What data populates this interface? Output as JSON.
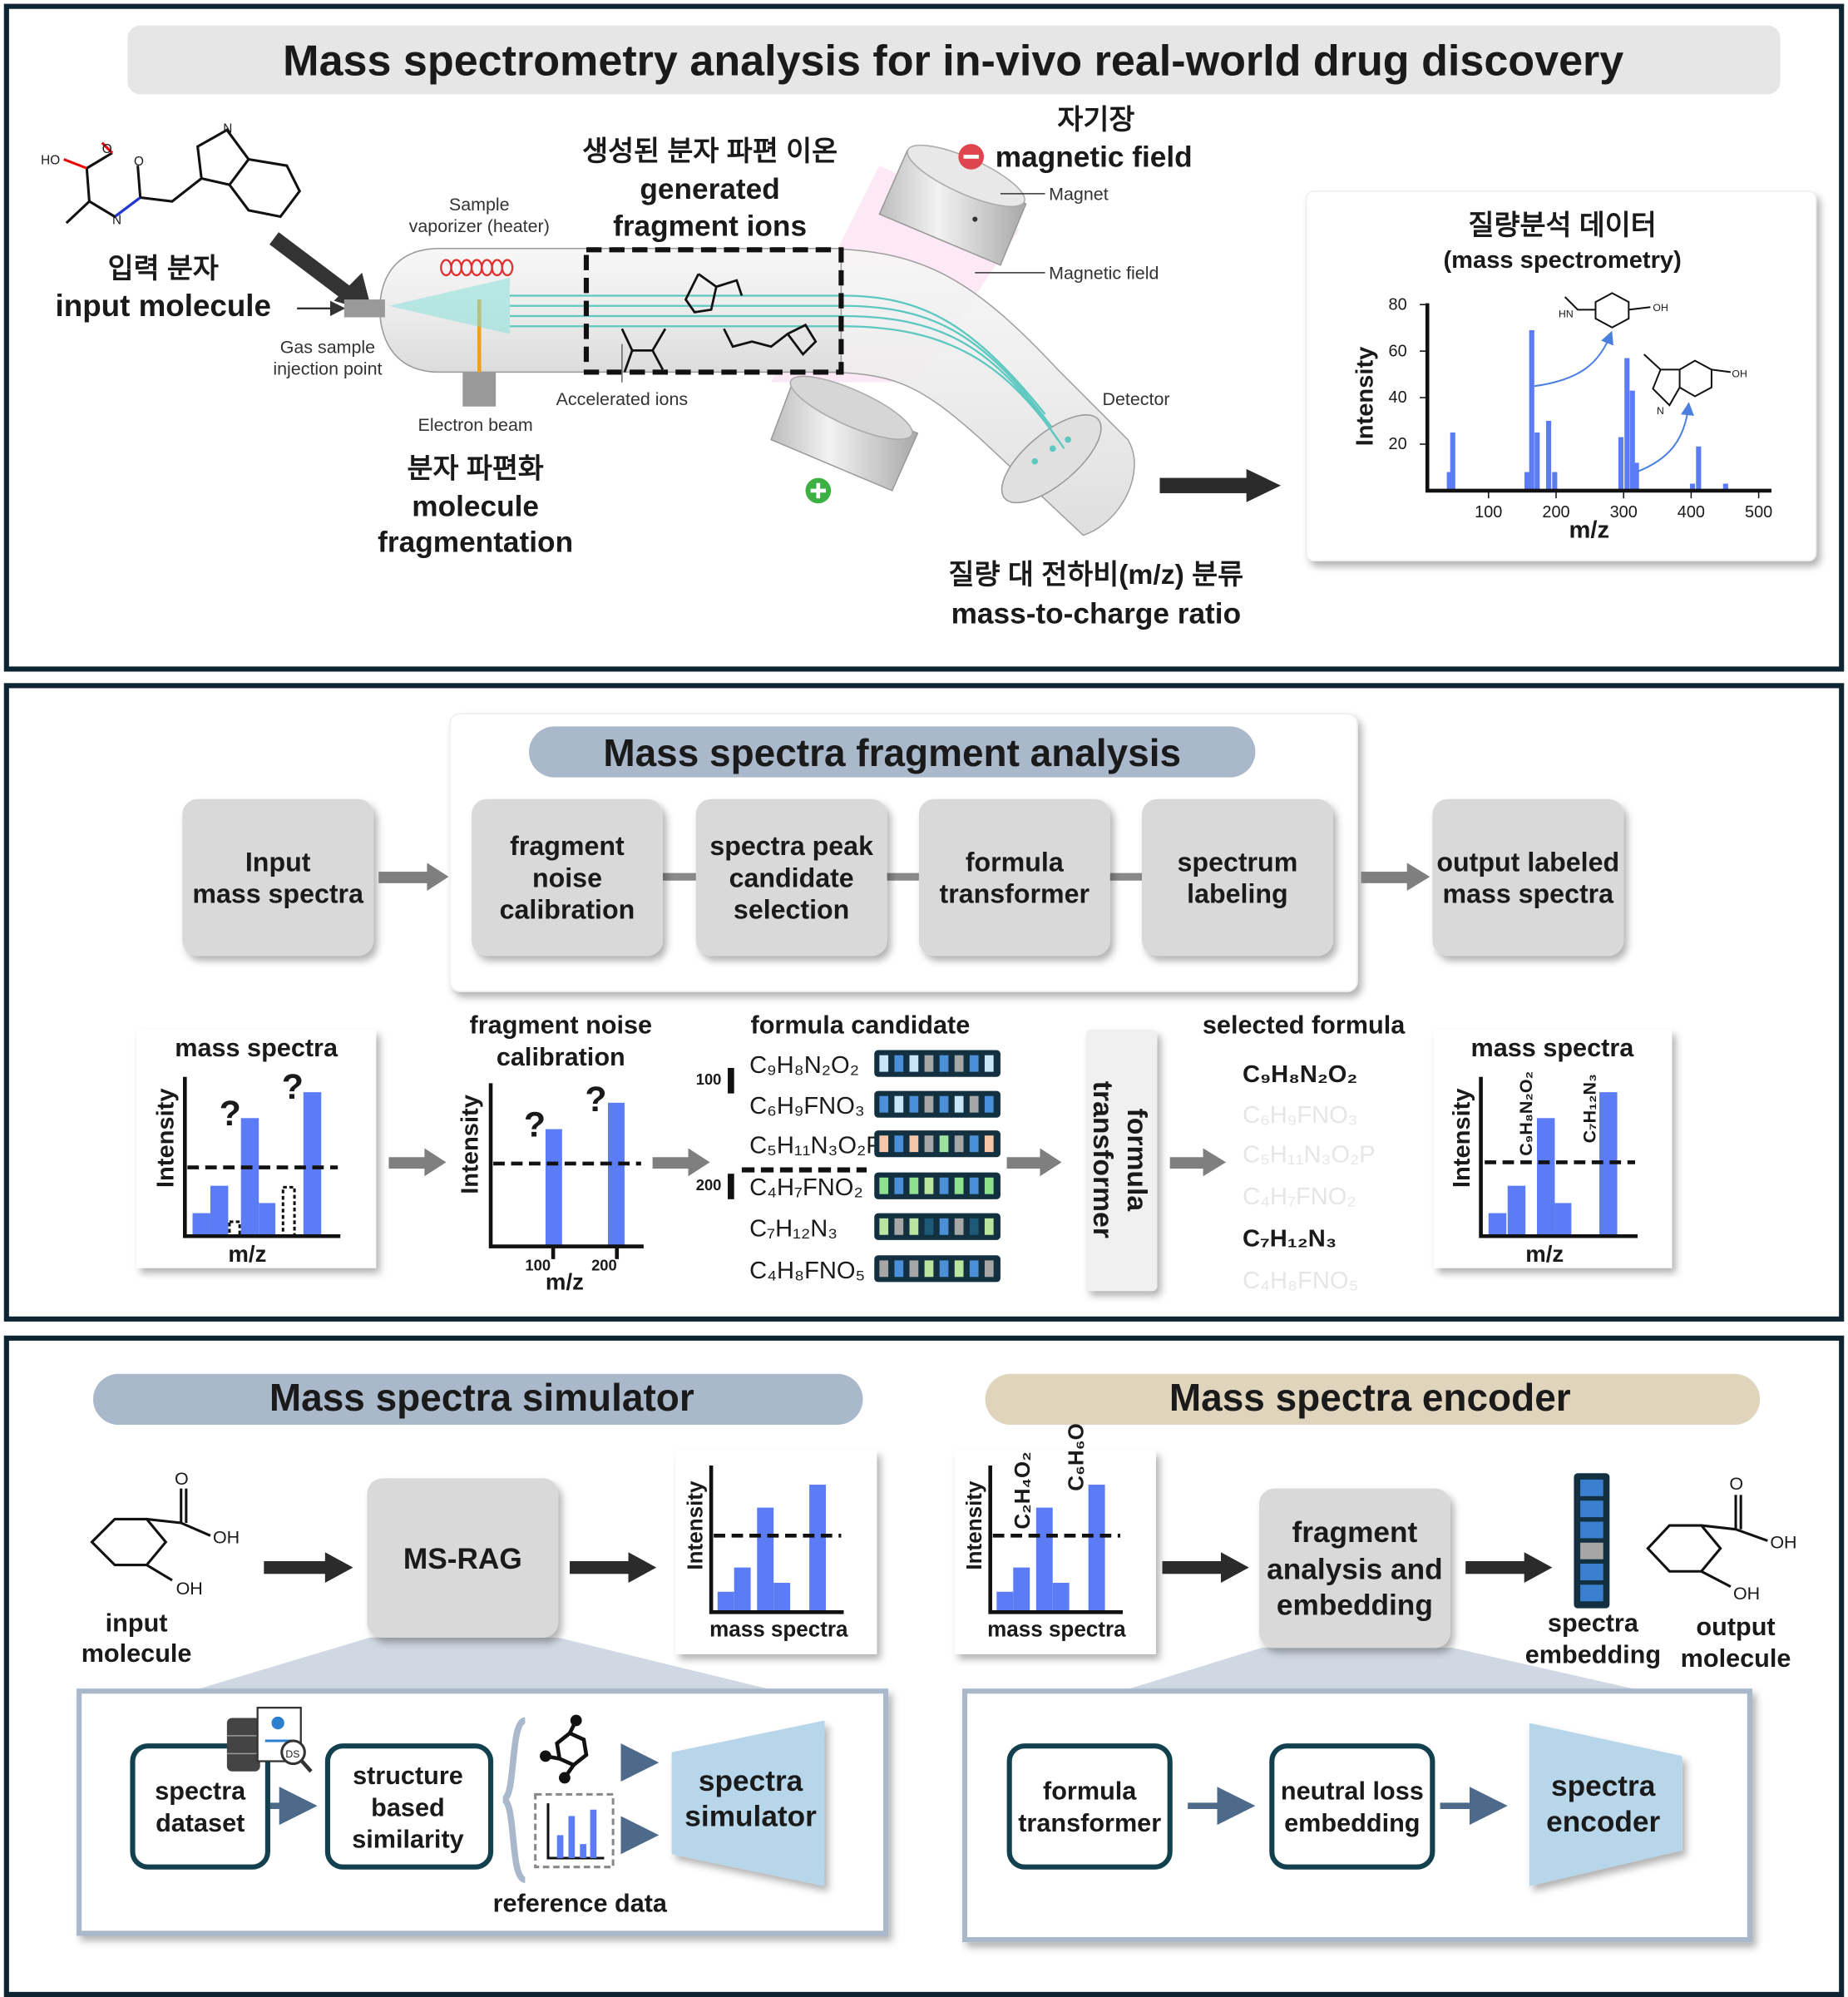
{
  "colors": {
    "panel_border": "#0d2533",
    "bar_blue": "#5b7cf5",
    "pill_blue": "#aab8cc",
    "pill_tan": "#e0d4bd",
    "box_gray": "#d9d9d9",
    "trapezoid_blue": "#b7d6ea",
    "plus_green": "#3cb043",
    "minus_red": "#e0454f"
  },
  "panel1": {
    "title": "Mass spectrometry analysis for in-vivo real-world drug discovery",
    "input_ko": "입력 분자",
    "input_en": "input molecule",
    "sample_vaporizer": [
      "Sample",
      "vaporizer (heater)"
    ],
    "gas_sample": [
      "Gas sample",
      "injection point"
    ],
    "electron_beam": "Electron beam",
    "accelerated_ions": "Accelerated ions",
    "fragment_ko": "생성된 분자 파편 이온",
    "fragment_en": [
      "generated",
      "fragment ions"
    ],
    "fragmentation_ko": "분자 파편화",
    "fragmentation_en": [
      "molecule",
      "fragmentation"
    ],
    "field_ko": "자기장",
    "field_en": "magnetic field",
    "magnet": "Magnet",
    "magnetic_field": "Magnetic field",
    "detector": "Detector",
    "mz_ko": "질량 대 전하비(m/z) 분류",
    "mz_en": "mass-to-charge ratio",
    "molecule_atoms": {
      "ho": "HO",
      "o": "O",
      "n": "N",
      "h": "H",
      "hn": "HN",
      "oh": "OH"
    },
    "icons": {
      "plus": "plus-circle-icon",
      "minus": "minus-circle-icon"
    }
  },
  "chart_data": {
    "type": "bar",
    "title": "질량분석 데이터",
    "subtitle": "(mass spectrometry)",
    "xlabel": "m/z",
    "ylabel": "Intensity",
    "xticks": [
      "100",
      "200",
      "300",
      "400",
      "500"
    ],
    "yticks": [
      "20",
      "40",
      "60",
      "80"
    ],
    "xlim": [
      0,
      510
    ],
    "ylim": [
      0,
      80
    ],
    "grid": false,
    "x": [
      42,
      47,
      157,
      164,
      172,
      189,
      198,
      296,
      305,
      313,
      319,
      402,
      411,
      451
    ],
    "values": [
      8,
      25,
      8,
      69,
      25,
      30,
      8,
      23,
      57,
      43,
      12,
      3,
      19,
      3
    ]
  },
  "panel2": {
    "title": "Mass spectra fragment analysis",
    "steps": [
      {
        "lines": [
          "Input",
          "mass spectra"
        ]
      },
      {
        "lines": [
          "fragment",
          "noise",
          "calibration"
        ]
      },
      {
        "lines": [
          "spectra peak",
          "candidate",
          "selection"
        ]
      },
      {
        "lines": [
          "formula",
          "transformer"
        ]
      },
      {
        "lines": [
          "spectrum",
          "labeling"
        ]
      },
      {
        "lines": [
          "output labeled",
          "mass spectra"
        ]
      }
    ],
    "input_chart": {
      "title": "mass spectra",
      "ylabel": "Intensity",
      "xlabel": "m/z",
      "question": "?",
      "values": [
        16,
        35,
        10,
        82,
        23,
        34,
        100
      ],
      "outlined": [
        false,
        false,
        true,
        false,
        false,
        true,
        false
      ]
    },
    "noise_chart": {
      "title": [
        "fragment noise",
        "calibration"
      ],
      "ylabel": "Intensity",
      "xlabel": "m/z",
      "question": "?",
      "xticks": [
        "100",
        "200"
      ],
      "values": [
        80,
        98
      ]
    },
    "formula_candidate": {
      "title": "formula candidate",
      "marks": [
        "100",
        "200"
      ],
      "formulas": [
        "C₉H₈N₂O₂",
        "C₆H₉FNO₃",
        "C₅H₁₁N₃O₂P",
        "C₄H₇FNO₂",
        "C₇H₁₂N₃",
        "C₄H₈FNO₅"
      ],
      "embeddings": [
        [
          "#c6e6f5",
          "#4a8fd8",
          "#c6e6f5",
          "#a6a6a6",
          "#4a8fd8",
          "#a6a6a6",
          "#4a8fd8",
          "#c6e6f5"
        ],
        [
          "#4a8fd8",
          "#c6e6f5",
          "#4a8fd8",
          "#a6a6a6",
          "#4a8fd8",
          "#c6e6f5",
          "#a6a6a6",
          "#4a8fd8"
        ],
        [
          "#f5c6a8",
          "#4a8fd8",
          "#f5c6a8",
          "#a6a6a6",
          "#9ee29e",
          "#a6a6a6",
          "#4a8fd8",
          "#f5c6a8"
        ],
        [
          "#8fe08f",
          "#4a8fd8",
          "#8fe08f",
          "#b8e6a0",
          "#4a8fd8",
          "#8fe08f",
          "#4a8fd8",
          "#8fe08f"
        ],
        [
          "#b8e6a0",
          "#a6a6a6",
          "#b8e6a0",
          "#1c5a78",
          "#4a8fd8",
          "#a6a6a6",
          "#1c5a78",
          "#b8e6a0"
        ],
        [
          "#a6a6a6",
          "#4a8fd8",
          "#a6a6a6",
          "#b8e6a0",
          "#4a8fd8",
          "#b8e6a0",
          "#4a8fd8",
          "#a6a6a6"
        ]
      ]
    },
    "transformer": [
      "formula",
      "transformer"
    ],
    "selected_formula": {
      "title": "selected formula",
      "formulas": [
        "C₉H₈N₂O₂",
        "C₆H₉FNO₃",
        "C₅H₁₁N₃O₂P",
        "C₄H₇FNO₂",
        "C₇H₁₂N₃",
        "C₄H₈FNO₅"
      ],
      "selected": [
        true,
        false,
        false,
        false,
        true,
        false
      ]
    },
    "output_chart": {
      "title": "mass spectra",
      "ylabel": "Intensity",
      "xlabel": "m/z",
      "labels": [
        "C₉H₈N₂O₂",
        "C₇H₁₂N₃"
      ],
      "values": [
        16,
        35,
        82,
        23,
        100
      ]
    }
  },
  "panel3": {
    "simulator_title": "Mass spectra simulator",
    "encoder_title": "Mass spectra encoder",
    "input_molecule": [
      "input",
      "molecule"
    ],
    "output_molecule": [
      "output",
      "molecule"
    ],
    "ms_rag": "MS-RAG",
    "sim_chart": {
      "ylabel": "Intensity",
      "xlabel": "mass spectra",
      "values": [
        16,
        35,
        82,
        23,
        100
      ]
    },
    "enc_chart": {
      "ylabel": "Intensity",
      "xlabel": "mass spectra",
      "labels": [
        "C₂H₄O₂",
        "C₆H₆O"
      ],
      "values": [
        16,
        35,
        82,
        23,
        100
      ]
    },
    "fragment_box": [
      "fragment",
      "analysis and",
      "embedding"
    ],
    "spectra_embedding": [
      "spectra",
      "embedding"
    ],
    "embedding_cells": [
      "#3a7fd0",
      "#3a7fd0",
      "#3a7fd0",
      "#a6a6a6",
      "#3a7fd0",
      "#3a7fd0"
    ],
    "spectra_dataset": [
      "spectra",
      "dataset"
    ],
    "structure_similarity": [
      "structure",
      "based",
      "similarity"
    ],
    "reference_data": "reference data",
    "spectra_simulator": [
      "spectra",
      "simulator"
    ],
    "formula_transformer": [
      "formula",
      "transformer"
    ],
    "neutral_loss": [
      "neutral loss",
      "embedding"
    ],
    "spectra_encoder": [
      "spectra",
      "encoder"
    ],
    "atoms": {
      "o": "O",
      "oh": "OH",
      "ds": "DS"
    }
  }
}
